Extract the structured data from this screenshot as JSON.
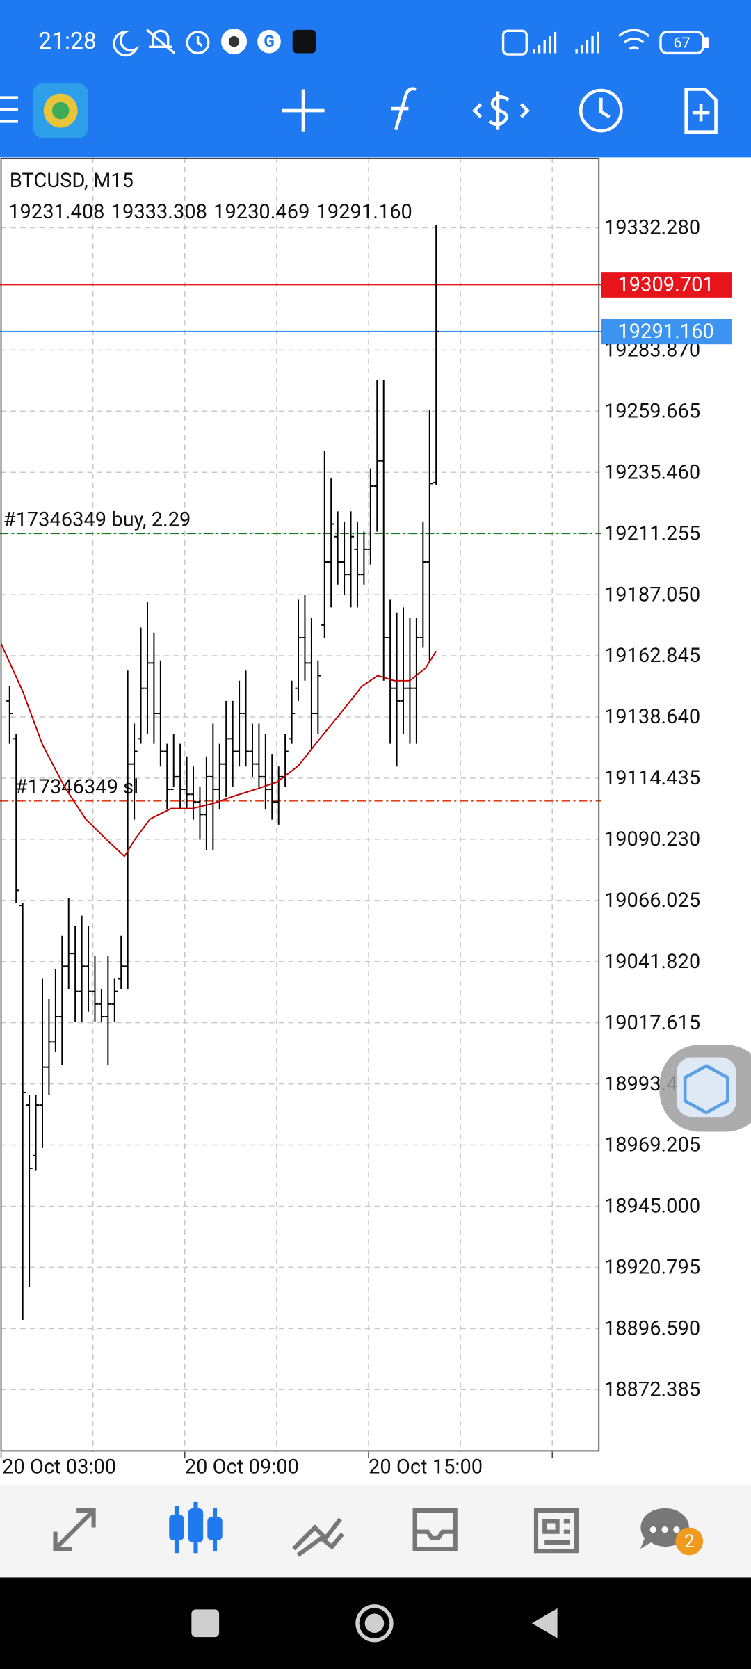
{
  "status_bar": {
    "time": "21:28",
    "battery": "67"
  },
  "chart_data": {
    "type": "ohlc",
    "symbol": "BTCUSD, M15",
    "ohlc_labels": [
      "19231.408",
      "19333.308",
      "19230.469",
      "19291.160"
    ],
    "color": "#000000",
    "open": [
      19145,
      19130,
      19064,
      18985,
      18965,
      18985,
      19000,
      19010,
      19020,
      19040,
      19045,
      19030,
      19040,
      19030,
      19025,
      19020,
      19025,
      19035,
      19040,
      19120,
      19130,
      19150,
      19160,
      19140,
      19125,
      19110,
      19115,
      19110,
      19108,
      19105,
      19100,
      19115,
      19110,
      19120,
      19130,
      19125,
      19140,
      19125,
      19120,
      19115,
      19110,
      19105,
      19115,
      19130,
      19150,
      19170,
      19160,
      19140,
      19175,
      19200,
      19210,
      19200,
      19195,
      19205,
      19195,
      19205,
      19230,
      19240,
      19170,
      19150,
      19145,
      19150,
      19150,
      19170,
      19200,
      19231.408
    ],
    "high": [
      19151,
      19132,
      19065,
      18989,
      18989,
      19035,
      19027,
      19039,
      19052,
      19067,
      19056,
      19060,
      19056,
      19044,
      19031,
      19044,
      19035,
      19052,
      19157,
      19136,
      19174,
      19184,
      19172,
      19161,
      19128,
      19132,
      19128,
      19123,
      19119,
      19111,
      19123,
      19136,
      19128,
      19145,
      19145,
      19153,
      19157,
      19136,
      19136,
      19132,
      19124,
      19119,
      19132,
      19153,
      19185,
      19187,
      19178,
      19161,
      19244,
      19233,
      19220,
      19216,
      19220,
      19216,
      19212,
      19237,
      19272,
      19272,
      19185,
      19180,
      19182,
      19178,
      19178,
      19216,
      19260,
      19333.308
    ],
    "low": [
      19128,
      19065,
      18900,
      18913,
      18959,
      18968,
      18989,
      19006,
      19001,
      19031,
      19018,
      19018,
      19022,
      19018,
      19018,
      19001,
      19018,
      19031,
      19031,
      19098,
      19128,
      19132,
      19128,
      19119,
      19102,
      19111,
      19102,
      19102,
      19098,
      19090,
      19086,
      19086,
      19102,
      19107,
      19111,
      19119,
      19119,
      19115,
      19111,
      19102,
      19098,
      19096,
      19111,
      19128,
      19145,
      19153,
      19126,
      19132,
      19170,
      19182,
      19191,
      19187,
      19182,
      19182,
      19191,
      19199,
      19212,
      19153,
      19128,
      19119,
      19132,
      19128,
      19128,
      19166,
      19161,
      19230.469
    ],
    "close": [
      19140,
      19070,
      18990,
      18960,
      18985,
      19000,
      19010,
      19020,
      19040,
      19045,
      19030,
      19040,
      19030,
      19025,
      19020,
      19025,
      19030,
      19040,
      19120,
      19125,
      19150,
      19160,
      19140,
      19125,
      19110,
      19115,
      19110,
      19108,
      19105,
      19100,
      19115,
      19110,
      19120,
      19130,
      19125,
      19140,
      19125,
      19120,
      19115,
      19110,
      19105,
      19115,
      19125,
      19140,
      19170,
      19160,
      19140,
      19155,
      19200,
      19215,
      19200,
      19195,
      19210,
      19195,
      19205,
      19230,
      19240,
      19170,
      19150,
      19145,
      19150,
      19150,
      19170,
      19200,
      19231,
      19291.16
    ],
    "ma": {
      "color": "#c00000",
      "x": [
        -1.3,
        2,
        5,
        8.4,
        11.6,
        14.9,
        17.5,
        19,
        21.4,
        24.6,
        27.8,
        31.1,
        34.3,
        37.5,
        40.8,
        44,
        47.2,
        50.5,
        53.7,
        56.1,
        58.6,
        61,
        63.4,
        65
      ],
      "values": [
        19167.7,
        19148.7,
        19127.7,
        19110.9,
        19098.2,
        19089.8,
        19083.5,
        19089.8,
        19098.2,
        19102.4,
        19102.4,
        19104.5,
        19107.4,
        19110.0,
        19112.9,
        19119.3,
        19129.8,
        19140.3,
        19150.8,
        19155.0,
        19153.0,
        19153.0,
        19158.0,
        19164.7
      ]
    },
    "ylim": [
      18847.7,
      19360.1
    ],
    "yticks": [
      {
        "value": 19332.28,
        "label": "19332.280"
      },
      {
        "value": 19283.87,
        "label": "19283.870"
      },
      {
        "value": 19259.665,
        "label": "19259.665"
      },
      {
        "value": 19235.46,
        "label": "19235.460"
      },
      {
        "value": 19211.255,
        "label": "19211.255"
      },
      {
        "value": 19187.05,
        "label": "19187.050"
      },
      {
        "value": 19162.845,
        "label": "19162.845"
      },
      {
        "value": 19138.64,
        "label": "19138.640"
      },
      {
        "value": 19114.435,
        "label": "19114.435"
      },
      {
        "value": 19090.23,
        "label": "19090.230"
      },
      {
        "value": 19066.025,
        "label": "19066.025"
      },
      {
        "value": 19041.82,
        "label": "19041.820"
      },
      {
        "value": 19017.615,
        "label": "19017.615"
      },
      {
        "value": 18993.41,
        "label": "18993.410"
      },
      {
        "value": 18969.205,
        "label": "18969.205"
      },
      {
        "value": 18945,
        "label": "18945.000"
      },
      {
        "value": 18920.795,
        "label": "18920.795"
      },
      {
        "value": 18896.59,
        "label": "18896.590"
      },
      {
        "value": 18872.385,
        "label": "18872.385"
      }
    ],
    "xlim": [
      -1.3,
      89.8
    ],
    "xticks": [
      {
        "value": -1.3,
        "label": "20 Oct 03:00"
      },
      {
        "value": 26.7,
        "label": "20 Oct 09:00"
      },
      {
        "value": 54.7,
        "label": "20 Oct 15:00"
      }
    ],
    "grid": true,
    "ask": {
      "value": 19309.701,
      "label": "19309.701",
      "color": "#e8141c"
    },
    "bid": {
      "value": 19291.16,
      "label": "19291.160",
      "color": "#3d94f0"
    },
    "orders": [
      {
        "label": "#17346349 buy, 2.29",
        "value": 19211.255,
        "color": "#1a7a1a"
      },
      {
        "label": "#17346349 sl",
        "value": 19105.4,
        "color": "#e0401a"
      }
    ]
  },
  "bottom_nav": {
    "badge": "2"
  }
}
